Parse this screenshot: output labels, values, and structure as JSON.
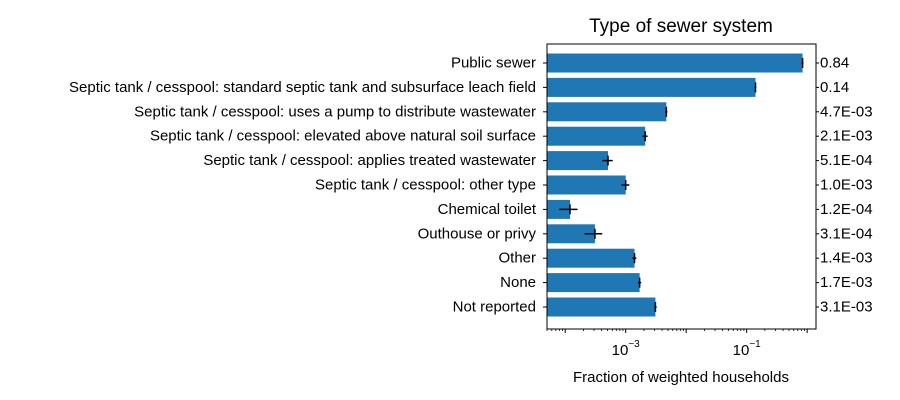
{
  "chart_data": {
    "type": "bar",
    "orientation": "horizontal",
    "title": "Type of sewer system",
    "xlabel": "Fraction of weighted households",
    "ylabel": "",
    "xscale": "log",
    "xlim": [
      5e-05,
      1.4
    ],
    "xticks": [
      {
        "value": 0.001,
        "base": "10",
        "exp": "−3"
      },
      {
        "value": 0.1,
        "base": "10",
        "exp": "−1"
      }
    ],
    "bar_color": "#1f77b4",
    "error_color": "#000000",
    "grid": false,
    "categories": [
      "Public sewer",
      "Septic tank / cesspool: standard septic tank and subsurface leach field",
      "Septic tank / cesspool: uses a pump to distribute wastewater",
      "Septic tank / cesspool: elevated above natural soil surface",
      "Septic tank / cesspool: applies treated wastewater",
      "Septic tank / cesspool: other type",
      "Chemical toilet",
      "Outhouse or privy",
      "Other",
      "None",
      "Not reported"
    ],
    "values": [
      0.84,
      0.14,
      0.0047,
      0.0021,
      0.00051,
      0.001,
      0.00012,
      0.00031,
      0.0014,
      0.0017,
      0.0031
    ],
    "errors": [
      0.03,
      0.004,
      0.0002,
      0.0002,
      0.0001,
      0.00015,
      4e-05,
      0.0001,
      0.0001,
      0.0001,
      0.00015
    ],
    "value_labels": [
      "0.84",
      "0.14",
      "4.7E-03",
      "2.1E-03",
      "5.1E-04",
      "1.0E-03",
      "1.2E-04",
      "3.1E-04",
      "1.4E-03",
      "1.7E-03",
      "3.1E-03"
    ]
  }
}
